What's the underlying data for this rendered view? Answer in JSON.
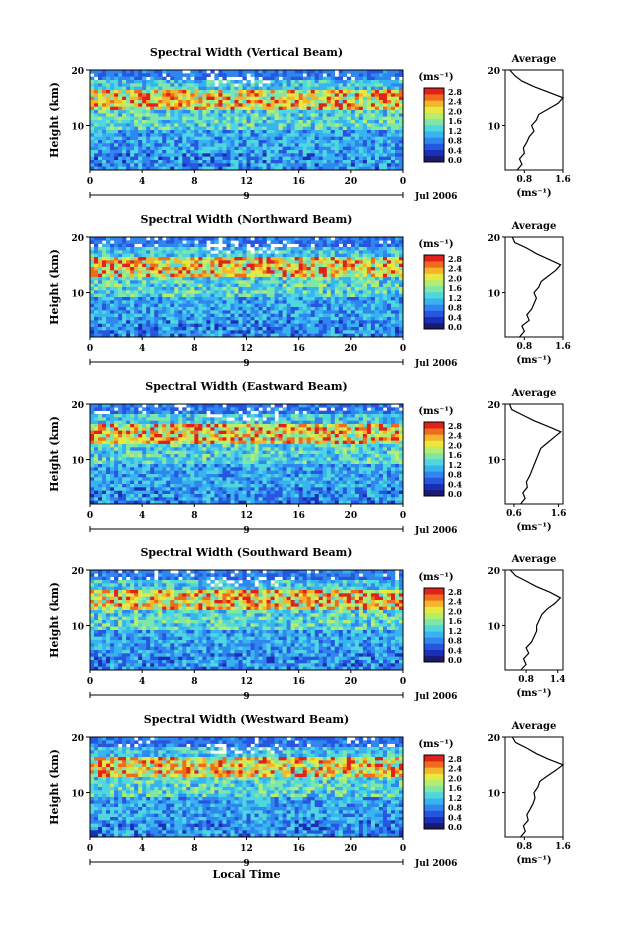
{
  "figure": {
    "xlabel": "Local Time",
    "date_label": "Jul 2006",
    "date_day": "9",
    "color_unit_label": "(ms⁻¹)",
    "avg_title": "Average",
    "avg_unit_label": "(ms⁻¹)"
  },
  "colorbar_ticks": [
    "2.8",
    "2.4",
    "2.0",
    "1.6",
    "1.2",
    "0.8",
    "0.4",
    "0.0"
  ],
  "colormap": [
    "#1a1a6e",
    "#1a2fb8",
    "#2656e0",
    "#2f86ef",
    "#37b4f0",
    "#4fd6df",
    "#7fe6a8",
    "#b5ee6e",
    "#e8e840",
    "#f5b52a",
    "#ef6b1e",
    "#e0221a"
  ],
  "chart_data": [
    {
      "type": "heatmap",
      "title": "Spectral Width (Vertical Beam)",
      "ylabel": "Height (km)",
      "x_ticks": [
        "0",
        "4",
        "8",
        "12",
        "16",
        "20",
        "0"
      ],
      "y_ticks": [
        "20",
        "10"
      ],
      "xlim": [
        0,
        24
      ],
      "ylim": [
        2,
        20
      ],
      "clim": [
        0.0,
        3.0
      ],
      "average_profile": {
        "x_ticks": [
          "0.8",
          "1.6"
        ],
        "xlim": [
          0.4,
          1.6
        ],
        "height": [
          2,
          3,
          4,
          5,
          6,
          7,
          8,
          9,
          10,
          11,
          12,
          13,
          14,
          15,
          16,
          17,
          18,
          19,
          20
        ],
        "width": [
          0.65,
          0.75,
          0.7,
          0.8,
          0.78,
          0.85,
          0.9,
          1.0,
          0.95,
          1.05,
          1.1,
          1.3,
          1.5,
          1.6,
          1.3,
          1.0,
          0.75,
          0.6,
          0.5
        ]
      }
    },
    {
      "type": "heatmap",
      "title": "Spectral Width (Northward Beam)",
      "ylabel": "Height (km)",
      "x_ticks": [
        "0",
        "4",
        "8",
        "12",
        "16",
        "20",
        "0"
      ],
      "y_ticks": [
        "20",
        "10"
      ],
      "xlim": [
        0,
        24
      ],
      "ylim": [
        2,
        20
      ],
      "clim": [
        0.0,
        3.0
      ],
      "average_profile": {
        "x_ticks": [
          "0.8",
          "1.6"
        ],
        "xlim": [
          0.4,
          1.6
        ],
        "height": [
          2,
          3,
          4,
          5,
          6,
          7,
          8,
          9,
          10,
          11,
          12,
          13,
          14,
          15,
          16,
          17,
          18,
          19,
          20
        ],
        "width": [
          0.7,
          0.8,
          0.75,
          0.9,
          0.85,
          0.95,
          1.0,
          1.05,
          1.0,
          1.1,
          1.15,
          1.3,
          1.45,
          1.55,
          1.3,
          1.05,
          0.85,
          0.6,
          0.55
        ]
      }
    },
    {
      "type": "heatmap",
      "title": "Spectral Width (Eastward Beam)",
      "ylabel": "Height (km)",
      "x_ticks": [
        "0",
        "4",
        "8",
        "12",
        "16",
        "20",
        "0"
      ],
      "y_ticks": [
        "20",
        "10"
      ],
      "xlim": [
        0,
        24
      ],
      "ylim": [
        2,
        20
      ],
      "clim": [
        0.0,
        3.0
      ],
      "average_profile": {
        "x_ticks": [
          "0.6",
          "1.6"
        ],
        "xlim": [
          0.4,
          1.7
        ],
        "height": [
          2,
          3,
          4,
          5,
          6,
          7,
          8,
          9,
          10,
          11,
          12,
          13,
          14,
          15,
          16,
          17,
          18,
          19,
          20
        ],
        "width": [
          0.75,
          0.85,
          0.8,
          0.9,
          0.88,
          0.95,
          1.0,
          1.05,
          1.1,
          1.15,
          1.2,
          1.35,
          1.5,
          1.65,
          1.35,
          1.05,
          0.8,
          0.55,
          0.5
        ]
      }
    },
    {
      "type": "heatmap",
      "title": "Spectral Width (Southward Beam)",
      "ylabel": "Height (km)",
      "x_ticks": [
        "0",
        "4",
        "8",
        "12",
        "16",
        "20",
        "0"
      ],
      "y_ticks": [
        "20",
        "10"
      ],
      "xlim": [
        0,
        24
      ],
      "ylim": [
        2,
        20
      ],
      "clim": [
        0.0,
        3.0
      ],
      "average_profile": {
        "x_ticks": [
          "0.8",
          "1.4"
        ],
        "xlim": [
          0.4,
          1.5
        ],
        "height": [
          2,
          3,
          4,
          5,
          6,
          7,
          8,
          9,
          10,
          11,
          12,
          13,
          14,
          15,
          16,
          17,
          18,
          19,
          20
        ],
        "width": [
          0.7,
          0.8,
          0.75,
          0.85,
          0.8,
          0.9,
          0.95,
          1.0,
          1.0,
          1.05,
          1.1,
          1.2,
          1.35,
          1.45,
          1.25,
          1.0,
          0.8,
          0.6,
          0.5
        ]
      }
    },
    {
      "type": "heatmap",
      "title": "Spectral Width (Westward Beam)",
      "ylabel": "Height (km)",
      "x_ticks": [
        "0",
        "4",
        "8",
        "12",
        "16",
        "20",
        "0"
      ],
      "y_ticks": [
        "20",
        "10"
      ],
      "xlim": [
        0,
        24
      ],
      "ylim": [
        2,
        20
      ],
      "clim": [
        0.0,
        3.0
      ],
      "average_profile": {
        "x_ticks": [
          "0.8",
          "1.6"
        ],
        "xlim": [
          0.4,
          1.6
        ],
        "height": [
          2,
          3,
          4,
          5,
          6,
          7,
          8,
          9,
          10,
          11,
          12,
          13,
          14,
          15,
          16,
          17,
          18,
          19,
          20
        ],
        "width": [
          0.72,
          0.82,
          0.78,
          0.88,
          0.85,
          0.92,
          0.98,
          1.02,
          1.0,
          1.08,
          1.12,
          1.28,
          1.45,
          1.6,
          1.3,
          1.05,
          0.85,
          0.62,
          0.55
        ]
      }
    }
  ]
}
